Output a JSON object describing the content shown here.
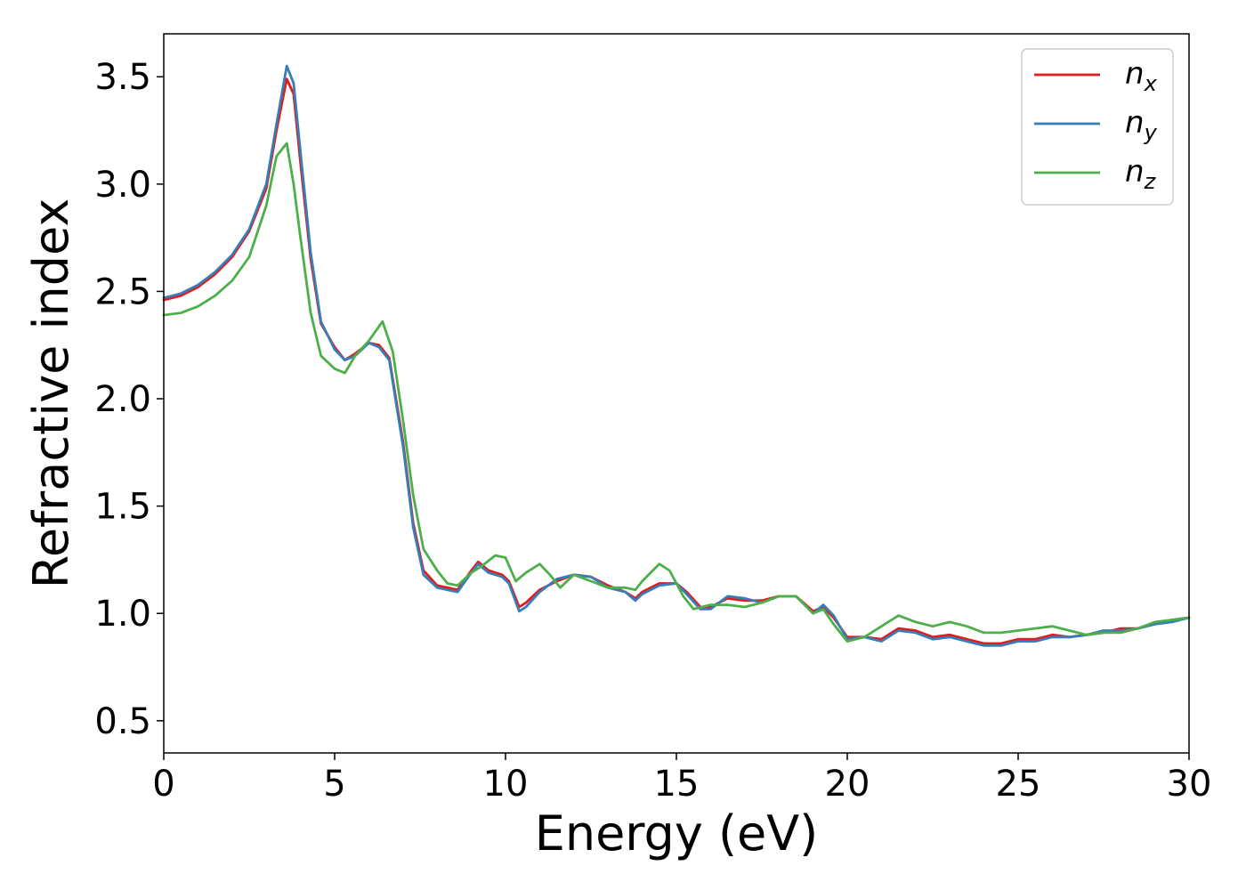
{
  "chart_data": {
    "type": "line",
    "xlabel": "Energy (eV)",
    "ylabel": "Refractive index",
    "xlim": [
      0,
      30
    ],
    "ylim": [
      0.35,
      3.7
    ],
    "xticks": [
      0,
      5,
      10,
      15,
      20,
      25,
      30
    ],
    "xtick_labels": [
      "0",
      "5",
      "10",
      "15",
      "20",
      "25",
      "30"
    ],
    "yticks": [
      0.5,
      1.0,
      1.5,
      2.0,
      2.5,
      3.0,
      3.5
    ],
    "ytick_labels": [
      "0.5",
      "1.0",
      "1.5",
      "2.0",
      "2.5",
      "3.0",
      "3.5"
    ],
    "grid": false,
    "legend_position": "top-right",
    "series": [
      {
        "name": "n",
        "subscript": "x",
        "color": "#e41a1c",
        "points": [
          [
            0,
            2.46
          ],
          [
            0.5,
            2.48
          ],
          [
            1,
            2.52
          ],
          [
            1.5,
            2.58
          ],
          [
            2,
            2.66
          ],
          [
            2.5,
            2.78
          ],
          [
            3,
            2.98
          ],
          [
            3.3,
            3.25
          ],
          [
            3.6,
            3.49
          ],
          [
            3.8,
            3.42
          ],
          [
            4,
            3.1
          ],
          [
            4.3,
            2.65
          ],
          [
            4.6,
            2.35
          ],
          [
            5,
            2.24
          ],
          [
            5.3,
            2.18
          ],
          [
            5.6,
            2.21
          ],
          [
            6,
            2.26
          ],
          [
            6.3,
            2.25
          ],
          [
            6.6,
            2.19
          ],
          [
            7,
            1.8
          ],
          [
            7.3,
            1.42
          ],
          [
            7.6,
            1.2
          ],
          [
            8,
            1.13
          ],
          [
            8.3,
            1.12
          ],
          [
            8.6,
            1.11
          ],
          [
            9,
            1.2
          ],
          [
            9.2,
            1.24
          ],
          [
            9.5,
            1.2
          ],
          [
            9.9,
            1.18
          ],
          [
            10.1,
            1.15
          ],
          [
            10.4,
            1.03
          ],
          [
            10.6,
            1.05
          ],
          [
            11,
            1.11
          ],
          [
            11.5,
            1.15
          ],
          [
            12,
            1.18
          ],
          [
            12.5,
            1.17
          ],
          [
            13,
            1.13
          ],
          [
            13.5,
            1.1
          ],
          [
            13.8,
            1.07
          ],
          [
            14,
            1.1
          ],
          [
            14.5,
            1.14
          ],
          [
            15,
            1.14
          ],
          [
            15.3,
            1.1
          ],
          [
            15.7,
            1.03
          ],
          [
            16,
            1.03
          ],
          [
            16.5,
            1.07
          ],
          [
            17,
            1.06
          ],
          [
            17.5,
            1.06
          ],
          [
            18,
            1.08
          ],
          [
            18.5,
            1.08
          ],
          [
            19,
            1.01
          ],
          [
            19.3,
            1.03
          ],
          [
            19.6,
            0.98
          ],
          [
            20,
            0.89
          ],
          [
            20.5,
            0.89
          ],
          [
            21,
            0.88
          ],
          [
            21.5,
            0.93
          ],
          [
            22,
            0.92
          ],
          [
            22.5,
            0.89
          ],
          [
            23,
            0.9
          ],
          [
            23.5,
            0.88
          ],
          [
            24,
            0.86
          ],
          [
            24.5,
            0.86
          ],
          [
            25,
            0.88
          ],
          [
            25.5,
            0.88
          ],
          [
            26,
            0.9
          ],
          [
            26.5,
            0.89
          ],
          [
            27,
            0.9
          ],
          [
            27.5,
            0.91
          ],
          [
            28,
            0.93
          ],
          [
            28.5,
            0.93
          ],
          [
            29,
            0.95
          ],
          [
            29.5,
            0.97
          ],
          [
            30,
            0.98
          ]
        ]
      },
      {
        "name": "n",
        "subscript": "y",
        "color": "#377eb8",
        "points": [
          [
            0,
            2.47
          ],
          [
            0.5,
            2.49
          ],
          [
            1,
            2.53
          ],
          [
            1.5,
            2.59
          ],
          [
            2,
            2.67
          ],
          [
            2.5,
            2.79
          ],
          [
            3,
            3.0
          ],
          [
            3.3,
            3.28
          ],
          [
            3.6,
            3.55
          ],
          [
            3.8,
            3.47
          ],
          [
            4,
            3.15
          ],
          [
            4.3,
            2.68
          ],
          [
            4.6,
            2.36
          ],
          [
            5,
            2.23
          ],
          [
            5.3,
            2.18
          ],
          [
            5.6,
            2.2
          ],
          [
            6,
            2.26
          ],
          [
            6.3,
            2.24
          ],
          [
            6.6,
            2.18
          ],
          [
            7,
            1.78
          ],
          [
            7.3,
            1.4
          ],
          [
            7.6,
            1.18
          ],
          [
            8,
            1.12
          ],
          [
            8.3,
            1.11
          ],
          [
            8.6,
            1.1
          ],
          [
            9,
            1.19
          ],
          [
            9.2,
            1.23
          ],
          [
            9.5,
            1.19
          ],
          [
            9.9,
            1.17
          ],
          [
            10.1,
            1.14
          ],
          [
            10.4,
            1.01
          ],
          [
            10.6,
            1.03
          ],
          [
            11,
            1.1
          ],
          [
            11.5,
            1.16
          ],
          [
            12,
            1.18
          ],
          [
            12.5,
            1.17
          ],
          [
            13,
            1.12
          ],
          [
            13.5,
            1.1
          ],
          [
            13.8,
            1.06
          ],
          [
            14,
            1.09
          ],
          [
            14.5,
            1.13
          ],
          [
            15,
            1.14
          ],
          [
            15.3,
            1.09
          ],
          [
            15.7,
            1.02
          ],
          [
            16,
            1.02
          ],
          [
            16.5,
            1.08
          ],
          [
            17,
            1.07
          ],
          [
            17.5,
            1.05
          ],
          [
            18,
            1.08
          ],
          [
            18.5,
            1.08
          ],
          [
            19,
            1.0
          ],
          [
            19.3,
            1.04
          ],
          [
            19.6,
            0.99
          ],
          [
            20,
            0.88
          ],
          [
            20.5,
            0.89
          ],
          [
            21,
            0.87
          ],
          [
            21.5,
            0.92
          ],
          [
            22,
            0.91
          ],
          [
            22.5,
            0.88
          ],
          [
            23,
            0.89
          ],
          [
            23.5,
            0.87
          ],
          [
            24,
            0.85
          ],
          [
            24.5,
            0.85
          ],
          [
            25,
            0.87
          ],
          [
            25.5,
            0.87
          ],
          [
            26,
            0.89
          ],
          [
            26.5,
            0.89
          ],
          [
            27,
            0.9
          ],
          [
            27.5,
            0.92
          ],
          [
            28,
            0.92
          ],
          [
            28.5,
            0.93
          ],
          [
            29,
            0.95
          ],
          [
            29.5,
            0.96
          ],
          [
            30,
            0.98
          ]
        ]
      },
      {
        "name": "n",
        "subscript": "z",
        "color": "#4daf4a",
        "points": [
          [
            0,
            2.39
          ],
          [
            0.5,
            2.4
          ],
          [
            1,
            2.43
          ],
          [
            1.5,
            2.48
          ],
          [
            2,
            2.55
          ],
          [
            2.5,
            2.66
          ],
          [
            3,
            2.9
          ],
          [
            3.3,
            3.13
          ],
          [
            3.6,
            3.19
          ],
          [
            3.8,
            3.0
          ],
          [
            4,
            2.75
          ],
          [
            4.3,
            2.4
          ],
          [
            4.6,
            2.2
          ],
          [
            5,
            2.14
          ],
          [
            5.3,
            2.12
          ],
          [
            5.6,
            2.2
          ],
          [
            6,
            2.27
          ],
          [
            6.4,
            2.36
          ],
          [
            6.7,
            2.22
          ],
          [
            7,
            1.9
          ],
          [
            7.3,
            1.55
          ],
          [
            7.6,
            1.3
          ],
          [
            8,
            1.2
          ],
          [
            8.3,
            1.14
          ],
          [
            8.6,
            1.13
          ],
          [
            9,
            1.19
          ],
          [
            9.3,
            1.22
          ],
          [
            9.7,
            1.27
          ],
          [
            10,
            1.26
          ],
          [
            10.3,
            1.15
          ],
          [
            10.6,
            1.19
          ],
          [
            11,
            1.23
          ],
          [
            11.3,
            1.18
          ],
          [
            11.6,
            1.12
          ],
          [
            12,
            1.18
          ],
          [
            12.5,
            1.15
          ],
          [
            13,
            1.12
          ],
          [
            13.5,
            1.12
          ],
          [
            13.8,
            1.11
          ],
          [
            14,
            1.15
          ],
          [
            14.5,
            1.23
          ],
          [
            14.8,
            1.2
          ],
          [
            15.2,
            1.08
          ],
          [
            15.5,
            1.02
          ],
          [
            16,
            1.04
          ],
          [
            16.5,
            1.04
          ],
          [
            17,
            1.03
          ],
          [
            17.5,
            1.05
          ],
          [
            18,
            1.08
          ],
          [
            18.5,
            1.08
          ],
          [
            19,
            1.0
          ],
          [
            19.3,
            1.02
          ],
          [
            19.6,
            0.95
          ],
          [
            20,
            0.87
          ],
          [
            20.5,
            0.89
          ],
          [
            21,
            0.94
          ],
          [
            21.5,
            0.99
          ],
          [
            22,
            0.96
          ],
          [
            22.5,
            0.94
          ],
          [
            23,
            0.96
          ],
          [
            23.5,
            0.94
          ],
          [
            24,
            0.91
          ],
          [
            24.5,
            0.91
          ],
          [
            25,
            0.92
          ],
          [
            25.5,
            0.93
          ],
          [
            26,
            0.94
          ],
          [
            26.5,
            0.92
          ],
          [
            27,
            0.9
          ],
          [
            27.5,
            0.91
          ],
          [
            28,
            0.91
          ],
          [
            28.5,
            0.93
          ],
          [
            29,
            0.96
          ],
          [
            29.5,
            0.97
          ],
          [
            30,
            0.98
          ]
        ]
      }
    ]
  }
}
